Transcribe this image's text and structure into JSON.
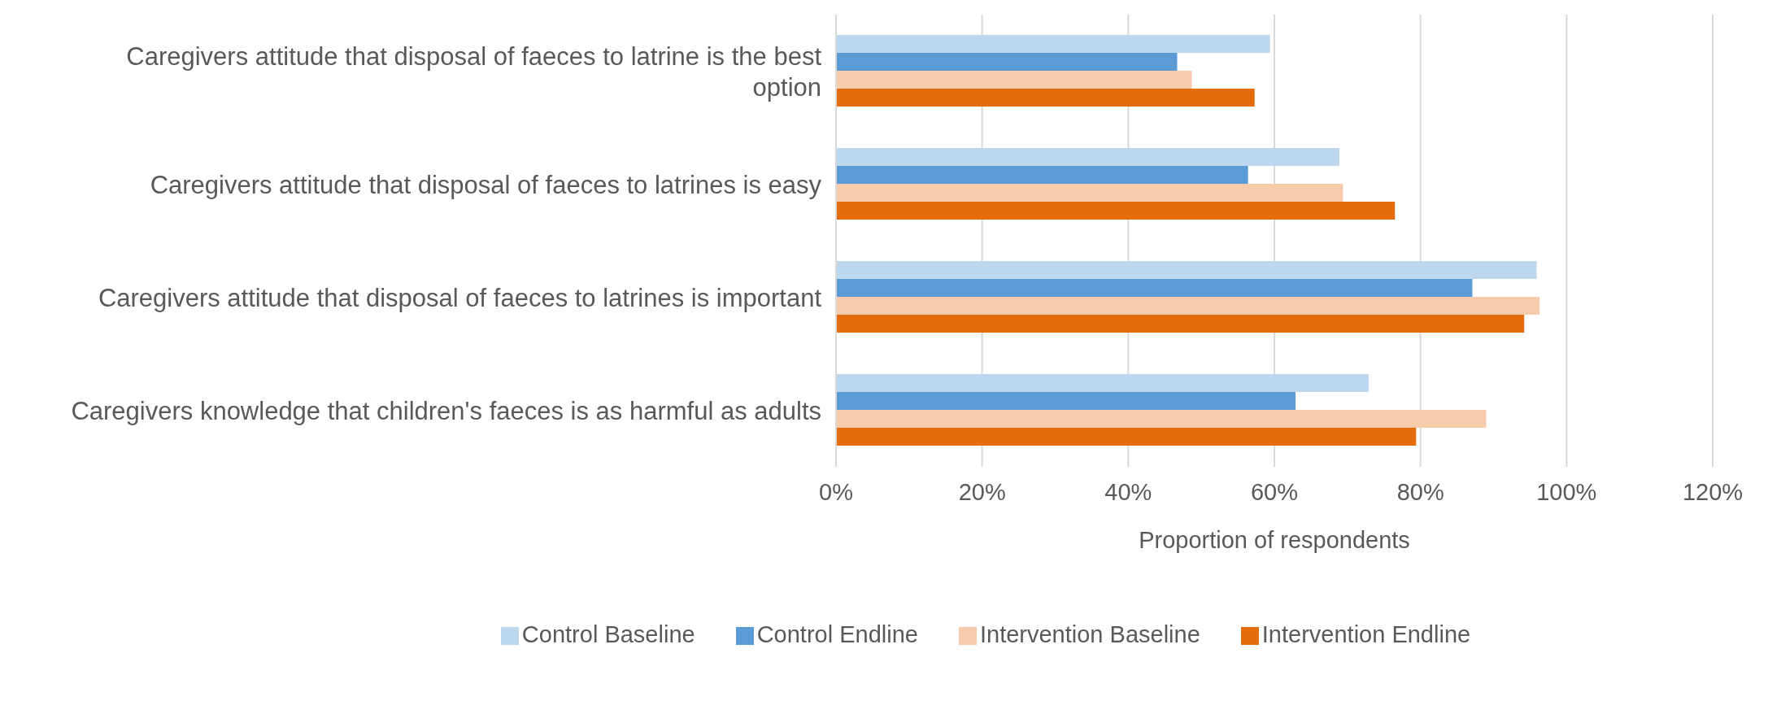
{
  "chart_data": {
    "type": "bar",
    "orientation": "horizontal",
    "xlabel": "Proportion of respondents",
    "categories": [
      "Caregivers attitude that disposal of faeces to latrine is the best option",
      "Caregivers attitude that disposal of faeces to latrines is easy",
      "Caregivers attitude that disposal of faeces to latrines is important",
      "Caregivers knowledge that children's faeces is as harmful as adults"
    ],
    "series": [
      {
        "name": "Control Baseline",
        "color": "#bdd7ee",
        "values": [
          59.4,
          68.9,
          95.9,
          72.9
        ]
      },
      {
        "name": "Control Endline",
        "color": "#5b9bd5",
        "values": [
          46.7,
          56.4,
          87.1,
          62.9
        ]
      },
      {
        "name": "Intervention Baseline",
        "color": "#f8cbad",
        "values": [
          48.7,
          69.4,
          96.3,
          89.0
        ]
      },
      {
        "name": "Intervention Endline",
        "color": "#e46c0a",
        "values": [
          57.3,
          76.5,
          94.2,
          79.4
        ]
      }
    ],
    "xlim": [
      0,
      120
    ],
    "xticks": [
      {
        "value": 0,
        "label": "0%"
      },
      {
        "value": 20,
        "label": "20%"
      },
      {
        "value": 40,
        "label": "40%"
      },
      {
        "value": 60,
        "label": "60%"
      },
      {
        "value": 80,
        "label": "80%"
      },
      {
        "value": 100,
        "label": "100%"
      },
      {
        "value": 120,
        "label": "120%"
      }
    ],
    "grid": "x",
    "legend": "bottom"
  }
}
